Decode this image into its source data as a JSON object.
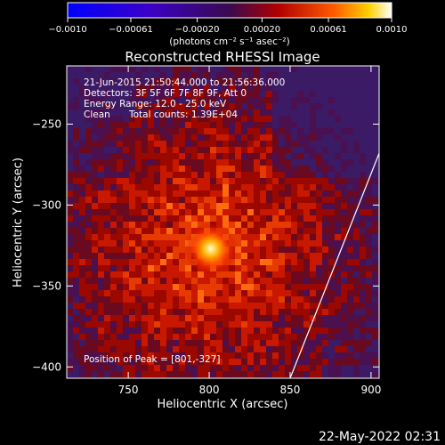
{
  "chart_data": {
    "type": "heatmap",
    "title": "Reconstructed RHESSI Image",
    "xlabel": "Heliocentric X (arcsec)",
    "ylabel": "Heliocentric Y (arcsec)",
    "xlim": [
      712,
      905
    ],
    "ylim": [
      -407,
      -214
    ],
    "x_ticks": [
      750,
      800,
      850,
      900
    ],
    "x_tick_labels": [
      "750",
      "800",
      "850",
      "900"
    ],
    "y_ticks": [
      -250,
      -300,
      -350,
      -400
    ],
    "y_tick_labels": [
      "−250",
      "−300",
      "−350",
      "−400"
    ],
    "colorbar": {
      "min": -0.001,
      "max": 0.001,
      "ticks": [
        -0.001,
        -0.00061,
        -0.0002,
        0.0002,
        0.00061,
        0.001
      ],
      "tick_labels": [
        "−0.0010",
        "−0.00061",
        "−0.00020",
        "0.00020",
        "0.00061",
        "0.0010"
      ],
      "unit_label": "(photons cm⁻² s⁻¹ asec⁻²)"
    },
    "info": {
      "time_range": "21-Jun-2015 21:50:44.000 to 21:56:36.000",
      "detectors": "Detectors: 3F 5F 6F 7F 8F 9F, Att 0",
      "energy": "Energy Range: 12.0 - 25.0 keV",
      "method": "Clean",
      "counts": "Total counts: 1.39E+04"
    },
    "peak": {
      "x": 801,
      "y": -327
    },
    "peak_text": "Position of Peak = [801,-327]",
    "limb": [
      [
        905,
        -268
      ],
      [
        850,
        -407
      ]
    ],
    "colors": {
      "limb": "#ffffff",
      "background": "#000000"
    }
  },
  "footer": {
    "timestamp": "22-May-2022 02:31"
  }
}
